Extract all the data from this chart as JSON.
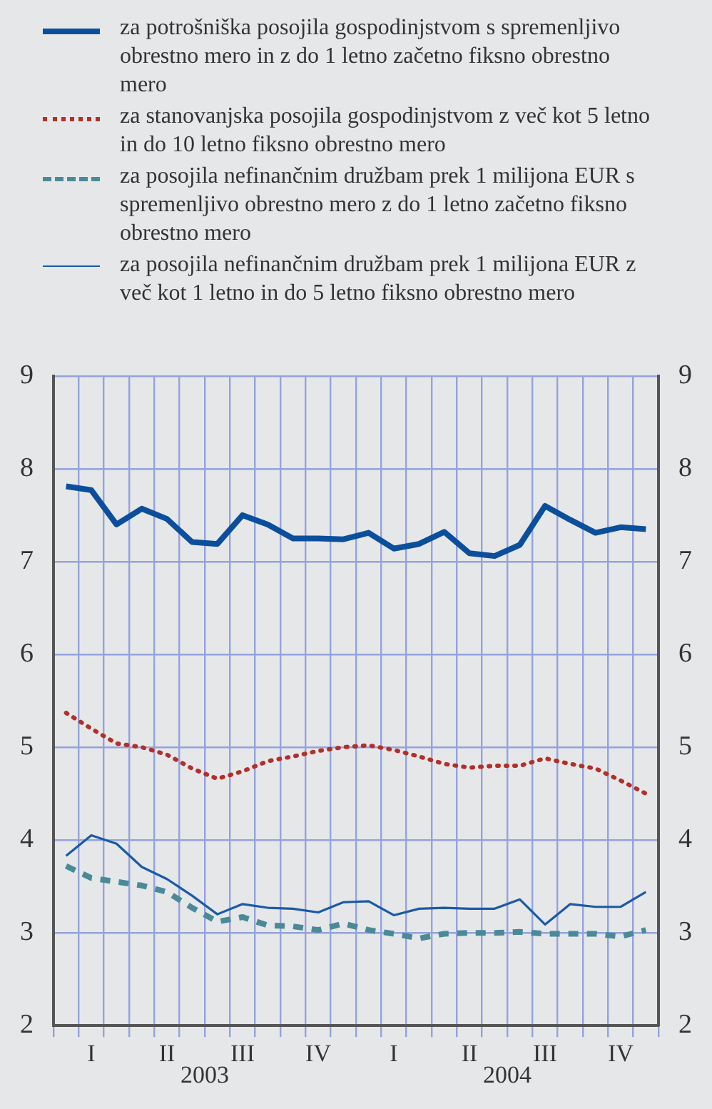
{
  "chart_data": {
    "type": "line",
    "categories": [
      null,
      "I",
      null,
      null,
      "II",
      null,
      null,
      "III",
      null,
      null,
      "IV",
      null,
      null,
      "I",
      null,
      null,
      "II",
      null,
      null,
      "III",
      null,
      null,
      "IV",
      null
    ],
    "annotations": [
      "2003",
      "2004"
    ],
    "ylim": [
      2,
      9
    ],
    "yticks": [
      2,
      3,
      4,
      5,
      6,
      7,
      8,
      9
    ],
    "y2lim": [
      2,
      9
    ],
    "y2ticks": [
      2,
      3,
      4,
      5,
      6,
      7,
      8,
      9
    ],
    "grid": true,
    "legend": "top",
    "marker": "none",
    "series": [
      {
        "name": "za potrošniška posojila gospodinjstvom s spremenljivo obrestno mero in z do 1 letno začetno fiksno obrestno mero",
        "color": "#0b4f9c",
        "line_style": "solid",
        "values": [
          7.81,
          7.77,
          7.4,
          7.57,
          7.46,
          7.21,
          7.19,
          7.5,
          7.4,
          7.25,
          7.25,
          7.24,
          7.31,
          7.14,
          7.19,
          7.32,
          7.09,
          7.06,
          7.18,
          7.6,
          7.45,
          7.31,
          7.37,
          7.35
        ]
      },
      {
        "name": "za stanovanjska posojila gospodinjstvom z več kot 5 letno in do 10 letno fiksno obrestno mero",
        "color": "#b0302a",
        "line_style": "dotted",
        "values": [
          5.37,
          5.2,
          5.04,
          5.0,
          4.92,
          4.77,
          4.66,
          4.74,
          4.85,
          4.9,
          4.96,
          5.0,
          5.02,
          4.97,
          4.9,
          4.82,
          4.78,
          4.8,
          4.8,
          4.88,
          4.82,
          4.77,
          4.64,
          4.5
        ]
      },
      {
        "name": "za posojila nefinančnim družbam prek 1 milijona EUR s spremenljivo obrestno mero z do 1 letno začetno fiksno obrestno mero",
        "color": "#4a8a98",
        "line_style": "dashed",
        "values": [
          3.72,
          3.59,
          3.55,
          3.51,
          3.44,
          3.27,
          3.12,
          3.17,
          3.08,
          3.07,
          3.03,
          3.1,
          3.03,
          2.99,
          2.94,
          2.99,
          3.0,
          3.0,
          3.01,
          2.99,
          2.99,
          2.99,
          2.96,
          3.03
        ]
      },
      {
        "name": "za posojila nefinančnim družbam prek 1 milijona EUR z več kot 1 letno in do 5 letno fiksno obrestno mero",
        "color": "#1a5aa8",
        "line_style": "solid",
        "values": [
          3.83,
          4.05,
          3.96,
          3.71,
          3.58,
          3.4,
          3.2,
          3.31,
          3.27,
          3.26,
          3.22,
          3.33,
          3.34,
          3.19,
          3.26,
          3.27,
          3.26,
          3.26,
          3.36,
          3.09,
          3.31,
          3.28,
          3.28,
          3.44
        ]
      }
    ]
  }
}
